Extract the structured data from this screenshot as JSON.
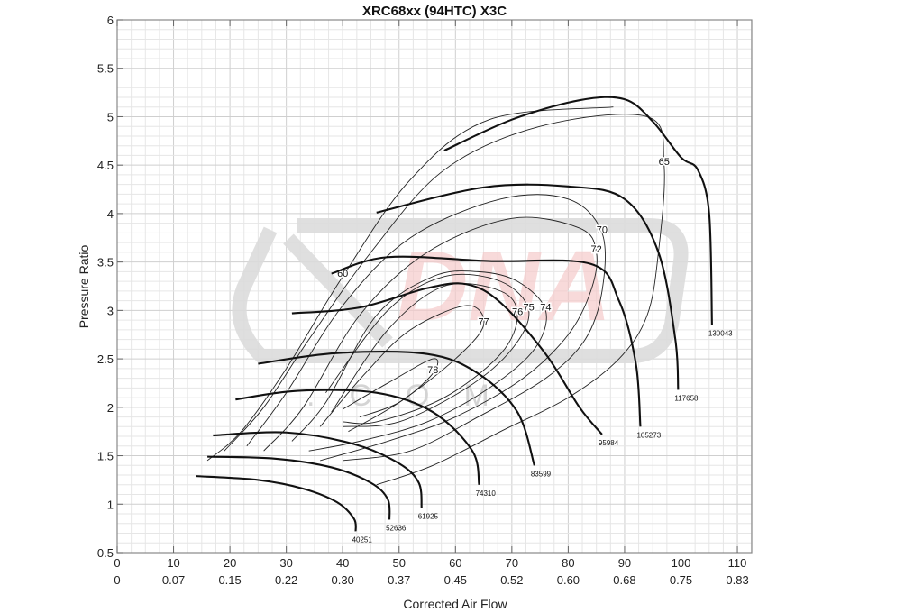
{
  "chart_data": {
    "type": "line",
    "subtype": "compressor-map",
    "title": "XRC68xx (94HTC) X3C",
    "xlabel": "Corrected Air Flow",
    "ylabel": "Pressure Ratio",
    "xlim": [
      0,
      112.5
    ],
    "ylim": [
      0.5,
      6
    ],
    "grid": true,
    "x_ticks_primary": [
      "0",
      "10",
      "20",
      "30",
      "40",
      "50",
      "60",
      "70",
      "80",
      "90",
      "100",
      "110"
    ],
    "x_ticks_secondary": [
      "0",
      "0.07",
      "0.15",
      "0.22",
      "0.30",
      "0.37",
      "0.45",
      "0.52",
      "0.60",
      "0.68",
      "0.75",
      "0.83"
    ],
    "y_ticks": [
      "0.5",
      "1",
      "1.5",
      "2",
      "2.5",
      "3",
      "3.5",
      "4",
      "4.5",
      "5",
      "5.5",
      "6"
    ],
    "speed_lines": [
      {
        "rpm": "40251",
        "points": [
          [
            14,
            1.29
          ],
          [
            25,
            1.25
          ],
          [
            33,
            1.16
          ],
          [
            39,
            1.02
          ],
          [
            42,
            0.85
          ],
          [
            42.3,
            0.72
          ]
        ]
      },
      {
        "rpm": "52636",
        "points": [
          [
            16,
            1.49
          ],
          [
            28,
            1.47
          ],
          [
            38,
            1.38
          ],
          [
            45,
            1.22
          ],
          [
            48,
            1.05
          ],
          [
            48.3,
            0.84
          ]
        ]
      },
      {
        "rpm": "61925",
        "points": [
          [
            17,
            1.71
          ],
          [
            30,
            1.74
          ],
          [
            42,
            1.62
          ],
          [
            50,
            1.42
          ],
          [
            53.5,
            1.22
          ],
          [
            54,
            0.96
          ]
        ]
      },
      {
        "rpm": "74310",
        "points": [
          [
            21,
            2.08
          ],
          [
            32,
            2.17
          ],
          [
            46,
            2.15
          ],
          [
            56,
            1.95
          ],
          [
            63,
            1.55
          ],
          [
            64.2,
            1.2
          ]
        ]
      },
      {
        "rpm": "83599",
        "points": [
          [
            25,
            2.45
          ],
          [
            39,
            2.56
          ],
          [
            55,
            2.55
          ],
          [
            64,
            2.35
          ],
          [
            71,
            1.95
          ],
          [
            74,
            1.4
          ]
        ]
      },
      {
        "rpm": "95984",
        "points": [
          [
            31,
            2.97
          ],
          [
            43,
            3.03
          ],
          [
            55,
            3.23
          ],
          [
            62,
            3.27
          ],
          [
            68,
            3.08
          ],
          [
            76,
            2.55
          ],
          [
            82,
            2.0
          ],
          [
            86,
            1.72
          ]
        ]
      },
      {
        "rpm": "105273",
        "points": [
          [
            38,
            3.38
          ],
          [
            48,
            3.55
          ],
          [
            66,
            3.51
          ],
          [
            84,
            3.48
          ],
          [
            89,
            3.1
          ],
          [
            92,
            2.45
          ],
          [
            92.8,
            1.8
          ]
        ]
      },
      {
        "rpm": "117658",
        "points": [
          [
            46,
            4.01
          ],
          [
            65,
            4.27
          ],
          [
            80,
            4.28
          ],
          [
            90,
            4.15
          ],
          [
            96,
            3.6
          ],
          [
            99,
            2.7
          ],
          [
            99.5,
            2.18
          ]
        ]
      },
      {
        "rpm": "130043",
        "points": [
          [
            58,
            4.65
          ],
          [
            70,
            4.97
          ],
          [
            82,
            5.17
          ],
          [
            90,
            5.18
          ],
          [
            95,
            4.95
          ],
          [
            100,
            4.58
          ],
          [
            103,
            4.45
          ],
          [
            105,
            4.0
          ],
          [
            105.5,
            2.85
          ]
        ]
      }
    ],
    "efficiency_islands": [
      {
        "label": "60",
        "points": [
          [
            16,
            1.45
          ],
          [
            22,
            1.75
          ],
          [
            30,
            2.4
          ],
          [
            40,
            3.35
          ],
          [
            52,
            4.35
          ],
          [
            66,
            4.97
          ],
          [
            88,
            5.1
          ]
        ]
      },
      {
        "label": "65",
        "points": [
          [
            19,
            1.55
          ],
          [
            26,
            2.0
          ],
          [
            34,
            2.7
          ],
          [
            45,
            3.6
          ],
          [
            58,
            4.45
          ],
          [
            75,
            4.9
          ],
          [
            94,
            5.0
          ],
          [
            97,
            4.5
          ],
          [
            96,
            3.6
          ],
          [
            94,
            2.95
          ],
          [
            89,
            2.5
          ],
          [
            80,
            2.1
          ],
          [
            68,
            1.75
          ],
          [
            56,
            1.4
          ],
          [
            46,
            1.2
          ]
        ]
      },
      {
        "label": "70",
        "points": [
          [
            23,
            1.6
          ],
          [
            30,
            2.15
          ],
          [
            40,
            3.05
          ],
          [
            52,
            3.75
          ],
          [
            68,
            4.15
          ],
          [
            80,
            4.15
          ],
          [
            86,
            3.8
          ],
          [
            86,
            3.2
          ],
          [
            83,
            2.7
          ],
          [
            76,
            2.3
          ],
          [
            64,
            1.9
          ],
          [
            52,
            1.55
          ],
          [
            40,
            1.45
          ]
        ]
      },
      {
        "label": "72",
        "points": [
          [
            26,
            1.55
          ],
          [
            33,
            2.0
          ],
          [
            43,
            2.95
          ],
          [
            55,
            3.6
          ],
          [
            70,
            3.95
          ],
          [
            82,
            3.85
          ],
          [
            85,
            3.6
          ],
          [
            84,
            3.2
          ],
          [
            80,
            2.75
          ],
          [
            72,
            2.3
          ],
          [
            60,
            1.9
          ],
          [
            48,
            1.65
          ],
          [
            36,
            1.45
          ]
        ]
      },
      {
        "label": "74",
        "points": [
          [
            31,
            1.65
          ],
          [
            37,
            2.05
          ],
          [
            46,
            2.95
          ],
          [
            56,
            3.35
          ],
          [
            64,
            3.4
          ],
          [
            71,
            3.3
          ],
          [
            76,
            3.0
          ],
          [
            74,
            2.6
          ],
          [
            66,
            2.2
          ],
          [
            55,
            1.85
          ],
          [
            43,
            1.65
          ],
          [
            34,
            1.55
          ]
        ]
      },
      {
        "label": "75",
        "points": [
          [
            37,
            2.15
          ],
          [
            48,
            3.0
          ],
          [
            58,
            3.35
          ],
          [
            68,
            3.3
          ],
          [
            73,
            3.0
          ],
          [
            70,
            2.6
          ],
          [
            62,
            2.2
          ],
          [
            50,
            1.85
          ],
          [
            40,
            1.8
          ]
        ]
      },
      {
        "label": "76",
        "points": [
          [
            38,
            1.95
          ],
          [
            48,
            2.8
          ],
          [
            58,
            3.25
          ],
          [
            68,
            3.2
          ],
          [
            71,
            2.95
          ],
          [
            68,
            2.55
          ],
          [
            58,
            2.1
          ],
          [
            46,
            1.85
          ],
          [
            40,
            1.85
          ]
        ]
      },
      {
        "label": "77",
        "points": [
          [
            36,
            1.8
          ],
          [
            44,
            2.35
          ],
          [
            52,
            2.8
          ],
          [
            62,
            3.05
          ],
          [
            65,
            2.85
          ],
          [
            60,
            2.5
          ],
          [
            50,
            2.05
          ],
          [
            41,
            1.75
          ]
        ]
      },
      {
        "label": "78",
        "points": [
          [
            40,
            1.98
          ],
          [
            48,
            2.25
          ],
          [
            56,
            2.5
          ],
          [
            56,
            2.35
          ],
          [
            50,
            2.05
          ],
          [
            43,
            1.9
          ]
        ]
      }
    ],
    "watermark": "DNA .COM"
  }
}
